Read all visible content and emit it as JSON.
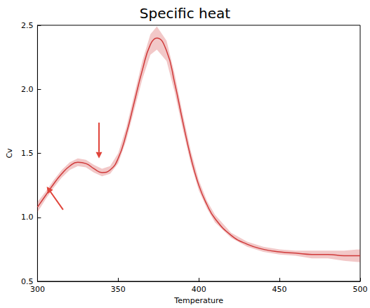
{
  "chart_data": {
    "type": "line",
    "title": "Specific heat",
    "x_label": "Temperature",
    "y_label": "Cv",
    "x": [
      300,
      305,
      310,
      315,
      320,
      325,
      330,
      335,
      340,
      345,
      350,
      355,
      360,
      365,
      370,
      374,
      380,
      385,
      390,
      395,
      400,
      405,
      410,
      420,
      430,
      440,
      450,
      460,
      470,
      480,
      490,
      500
    ],
    "values": [
      1.08,
      1.17,
      1.26,
      1.34,
      1.4,
      1.43,
      1.42,
      1.38,
      1.35,
      1.37,
      1.46,
      1.65,
      1.9,
      2.15,
      2.35,
      2.4,
      2.3,
      2.05,
      1.75,
      1.47,
      1.25,
      1.1,
      0.99,
      0.86,
      0.79,
      0.75,
      0.73,
      0.72,
      0.71,
      0.71,
      0.7,
      0.7
    ],
    "lower": [
      1.04,
      1.14,
      1.23,
      1.31,
      1.37,
      1.4,
      1.39,
      1.35,
      1.32,
      1.34,
      1.42,
      1.6,
      1.84,
      2.08,
      2.27,
      2.31,
      2.22,
      1.98,
      1.69,
      1.42,
      1.21,
      1.07,
      0.96,
      0.84,
      0.77,
      0.73,
      0.71,
      0.7,
      0.68,
      0.68,
      0.66,
      0.65
    ],
    "upper": [
      1.12,
      1.2,
      1.29,
      1.37,
      1.43,
      1.46,
      1.45,
      1.41,
      1.38,
      1.4,
      1.5,
      1.7,
      1.96,
      2.22,
      2.43,
      2.49,
      2.38,
      2.12,
      1.81,
      1.52,
      1.29,
      1.13,
      1.02,
      0.88,
      0.81,
      0.77,
      0.75,
      0.74,
      0.74,
      0.74,
      0.74,
      0.75
    ],
    "color": "#d03a3a",
    "xlim": [
      300,
      500
    ],
    "xticks": [
      300,
      350,
      400,
      450,
      500
    ],
    "ylim": [
      0.5,
      2.5
    ],
    "yticks": [
      0.5,
      {
        "value": 1,
        "label": "1.0"
      },
      1.5,
      {
        "value": 2,
        "label": "2.0"
      },
      2.5
    ],
    "grid": false,
    "marker": "none"
  }
}
